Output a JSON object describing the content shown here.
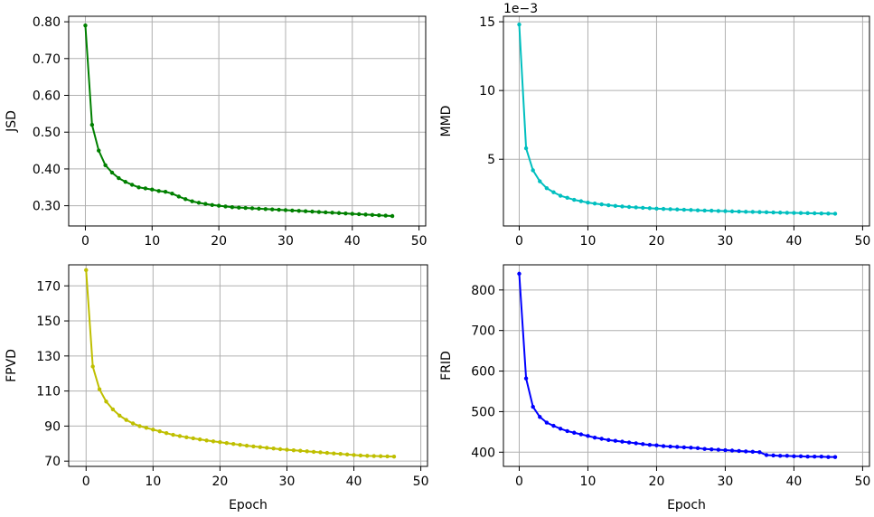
{
  "chart_data": [
    {
      "type": "line",
      "ylabel": "JSD",
      "xlabel": "",
      "color": "#008000",
      "grid": true,
      "xlim": [
        -2.5,
        51
      ],
      "ylim": [
        0.245,
        0.815
      ],
      "xticks": [
        0,
        10,
        20,
        30,
        40,
        50
      ],
      "xtick_labels": [
        "0",
        "10",
        "20",
        "30",
        "40",
        "50"
      ],
      "yticks": [
        0.3,
        0.4,
        0.5,
        0.6,
        0.7,
        0.8
      ],
      "ytick_labels": [
        "0.30",
        "0.40",
        "0.50",
        "0.60",
        "0.70",
        "0.80"
      ],
      "offset_text": "",
      "series": [
        {
          "x": [
            0,
            1,
            2,
            3,
            4,
            5,
            6,
            7,
            8,
            9,
            10,
            11,
            12,
            13,
            14,
            15,
            16,
            17,
            18,
            19,
            20,
            21,
            22,
            23,
            24,
            25,
            26,
            27,
            28,
            29,
            30,
            31,
            32,
            33,
            34,
            35,
            36,
            37,
            38,
            39,
            40,
            41,
            42,
            43,
            44,
            45,
            46
          ],
          "values": [
            0.79,
            0.52,
            0.45,
            0.41,
            0.39,
            0.375,
            0.365,
            0.357,
            0.35,
            0.347,
            0.344,
            0.34,
            0.338,
            0.333,
            0.325,
            0.318,
            0.312,
            0.308,
            0.305,
            0.302,
            0.3,
            0.298,
            0.296,
            0.295,
            0.294,
            0.293,
            0.292,
            0.291,
            0.29,
            0.289,
            0.288,
            0.287,
            0.286,
            0.285,
            0.284,
            0.283,
            0.282,
            0.281,
            0.28,
            0.279,
            0.278,
            0.277,
            0.276,
            0.275,
            0.274,
            0.273,
            0.272
          ]
        }
      ]
    },
    {
      "type": "line",
      "ylabel": "MMD",
      "xlabel": "",
      "color": "#00bfbf",
      "grid": true,
      "xlim": [
        -2.3,
        51
      ],
      "ylim": [
        0.15,
        15.4
      ],
      "xticks": [
        0,
        10,
        20,
        30,
        40,
        50
      ],
      "xtick_labels": [
        "0",
        "10",
        "20",
        "30",
        "40",
        "50"
      ],
      "yticks": [
        5,
        10,
        15
      ],
      "ytick_labels": [
        "5",
        "10",
        "15"
      ],
      "offset_text": "1e−3",
      "series": [
        {
          "x": [
            0,
            1,
            2,
            3,
            4,
            5,
            6,
            7,
            8,
            9,
            10,
            11,
            12,
            13,
            14,
            15,
            16,
            17,
            18,
            19,
            20,
            21,
            22,
            23,
            24,
            25,
            26,
            27,
            28,
            29,
            30,
            31,
            32,
            33,
            34,
            35,
            36,
            37,
            38,
            39,
            40,
            41,
            42,
            43,
            44,
            45,
            46
          ],
          "values": [
            14.8,
            5.8,
            4.2,
            3.4,
            2.9,
            2.6,
            2.35,
            2.2,
            2.05,
            1.95,
            1.85,
            1.78,
            1.72,
            1.66,
            1.61,
            1.57,
            1.53,
            1.5,
            1.47,
            1.44,
            1.41,
            1.39,
            1.37,
            1.35,
            1.33,
            1.31,
            1.29,
            1.27,
            1.26,
            1.24,
            1.23,
            1.21,
            1.2,
            1.18,
            1.17,
            1.16,
            1.15,
            1.13,
            1.12,
            1.11,
            1.1,
            1.09,
            1.08,
            1.07,
            1.06,
            1.05,
            1.04
          ]
        }
      ]
    },
    {
      "type": "line",
      "ylabel": "FPVD",
      "xlabel": "Epoch",
      "color": "#bfbf00",
      "grid": true,
      "xlim": [
        -2.6,
        51
      ],
      "ylim": [
        67,
        182
      ],
      "xticks": [
        0,
        10,
        20,
        30,
        40,
        50
      ],
      "xtick_labels": [
        "0",
        "10",
        "20",
        "30",
        "40",
        "50"
      ],
      "yticks": [
        70,
        90,
        110,
        130,
        150,
        170
      ],
      "ytick_labels": [
        "70",
        "90",
        "110",
        "130",
        "150",
        "170"
      ],
      "offset_text": "",
      "series": [
        {
          "x": [
            0,
            1,
            2,
            3,
            4,
            5,
            6,
            7,
            8,
            9,
            10,
            11,
            12,
            13,
            14,
            15,
            16,
            17,
            18,
            19,
            20,
            21,
            22,
            23,
            24,
            25,
            26,
            27,
            28,
            29,
            30,
            31,
            32,
            33,
            34,
            35,
            36,
            37,
            38,
            39,
            40,
            41,
            42,
            43,
            44,
            45,
            46
          ],
          "values": [
            179,
            124,
            111,
            104,
            99.5,
            96,
            93.5,
            91.5,
            90,
            89,
            88,
            87,
            86,
            85,
            84.3,
            83.6,
            83,
            82.4,
            81.8,
            81.3,
            80.8,
            80.3,
            79.8,
            79.3,
            78.8,
            78.4,
            78,
            77.6,
            77.2,
            76.8,
            76.5,
            76.2,
            75.9,
            75.6,
            75.3,
            75,
            74.7,
            74.4,
            74.1,
            73.8,
            73.5,
            73.2,
            73,
            72.9,
            72.8,
            72.7,
            72.6
          ]
        }
      ]
    },
    {
      "type": "line",
      "ylabel": "FRID",
      "xlabel": "Epoch",
      "color": "#0000ff",
      "grid": true,
      "xlim": [
        -2.3,
        51
      ],
      "ylim": [
        365,
        862
      ],
      "xticks": [
        0,
        10,
        20,
        30,
        40,
        50
      ],
      "xtick_labels": [
        "0",
        "10",
        "20",
        "30",
        "40",
        "50"
      ],
      "yticks": [
        400,
        500,
        600,
        700,
        800
      ],
      "ytick_labels": [
        "400",
        "500",
        "600",
        "700",
        "800"
      ],
      "offset_text": "",
      "series": [
        {
          "x": [
            0,
            1,
            2,
            3,
            4,
            5,
            6,
            7,
            8,
            9,
            10,
            11,
            12,
            13,
            14,
            15,
            16,
            17,
            18,
            19,
            20,
            21,
            22,
            23,
            24,
            25,
            26,
            27,
            28,
            29,
            30,
            31,
            32,
            33,
            34,
            35,
            36,
            37,
            38,
            39,
            40,
            41,
            42,
            43,
            44,
            45,
            46
          ],
          "values": [
            840,
            582,
            512,
            487,
            473,
            465,
            458,
            452,
            448,
            444,
            440,
            436,
            433,
            430,
            428,
            426,
            424,
            422,
            420,
            418,
            417,
            415,
            414,
            413,
            412,
            411,
            410,
            408,
            407,
            406,
            405,
            404,
            403,
            402,
            401,
            400,
            393,
            392,
            391,
            391,
            390,
            390,
            389,
            389,
            389,
            388,
            388
          ]
        }
      ]
    }
  ]
}
